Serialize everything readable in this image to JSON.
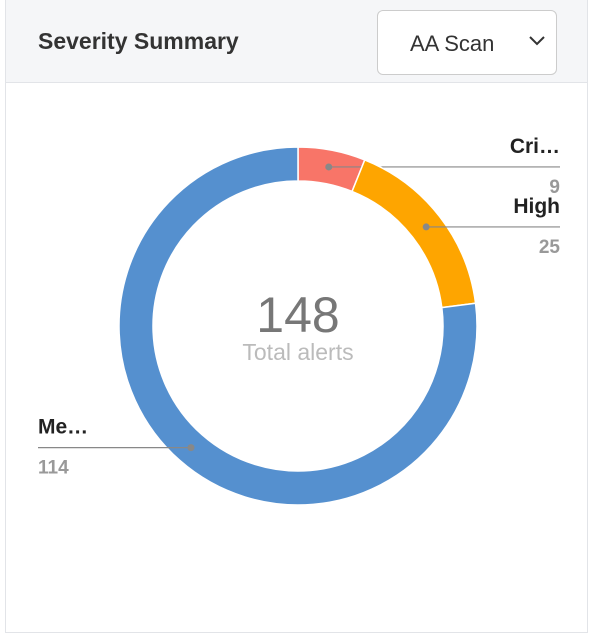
{
  "header": {
    "title": "Severity Summary",
    "dropdown": "AA Scan"
  },
  "chart_data": {
    "type": "donut",
    "categories": [
      "Cri…",
      "High",
      "Me…"
    ],
    "values": [
      9,
      25,
      114
    ],
    "colors": [
      "#f87568",
      "#fea500",
      "#5590cf"
    ],
    "total": 148,
    "center_label": "Total alerts"
  }
}
